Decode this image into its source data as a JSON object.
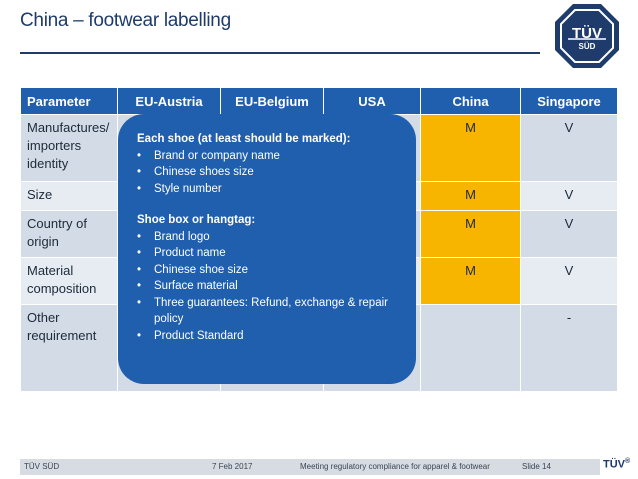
{
  "slide": {
    "title": "China – footwear labelling"
  },
  "logo": {
    "main": "TÜV",
    "sub": "SÜD"
  },
  "table": {
    "headers": [
      "Parameter",
      "EU-Austria",
      "EU-Belgium",
      "USA",
      "China",
      "Singapore"
    ],
    "rows": [
      {
        "parameter": "Manufactures/ importers identity",
        "china": "M",
        "singapore": "V"
      },
      {
        "parameter": "Size",
        "china": "M",
        "singapore": "V"
      },
      {
        "parameter": "Country of origin",
        "china": "M",
        "singapore": "V"
      },
      {
        "parameter": "Material composition",
        "china": "M",
        "singapore": "V"
      },
      {
        "parameter": "Other requirement",
        "china": "",
        "singapore": "-"
      }
    ]
  },
  "callout": {
    "heading1": "Each shoe (at least should be marked):",
    "list1": [
      "Brand or company name",
      "Chinese shoes size",
      "Style number"
    ],
    "heading2": "Shoe box or hangtag:",
    "list2": [
      "Brand logo",
      "Product name",
      "Chinese shoe size",
      "Surface material",
      "Three guarantees: Refund, exchange & repair policy",
      "Product Standard"
    ]
  },
  "footer": {
    "company": "TÜV SÜD",
    "date": "7 Feb 2017",
    "topic": "Meeting regulatory compliance for apparel & footwear",
    "slide": "Slide 14",
    "logo": "TÜV",
    "logo_mark": "®"
  },
  "colors": {
    "brand_blue": "#1f5fad",
    "title_navy": "#1f3b6b",
    "china_highlight": "#f7b500"
  }
}
